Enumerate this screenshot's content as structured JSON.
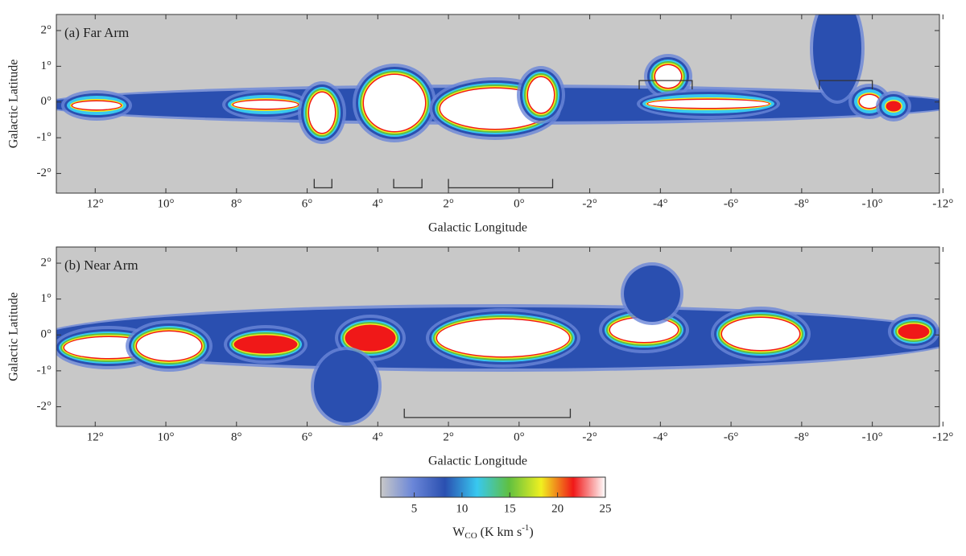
{
  "chart_data": [
    {
      "type": "map",
      "title": "(a) Far Arm",
      "xlabel": "Galactic Longitude",
      "ylabel": "Galactic Latitude",
      "xlim": [
        13.1,
        -11.9
      ],
      "ylim": [
        -2.55,
        2.45
      ],
      "xticks": [
        {
          "value": 12,
          "label": "12°"
        },
        {
          "value": 10,
          "label": "10°"
        },
        {
          "value": 8,
          "label": "8°"
        },
        {
          "value": 6,
          "label": "6°"
        },
        {
          "value": 4,
          "label": "4°"
        },
        {
          "value": 2,
          "label": "2°"
        },
        {
          "value": 0,
          "label": "0°"
        },
        {
          "value": -2,
          "label": "-2°"
        },
        {
          "value": -4,
          "label": "-4°"
        },
        {
          "value": -6,
          "label": "-6°"
        },
        {
          "value": -8,
          "label": "-8°"
        },
        {
          "value": -10,
          "label": "-10°"
        },
        {
          "value": -12,
          "label": "-12°"
        }
      ],
      "yticks": [
        {
          "value": 2,
          "label": "2°"
        },
        {
          "value": 1,
          "label": "1°"
        },
        {
          "value": 0,
          "label": "0°"
        },
        {
          "value": -1,
          "label": "-1°"
        },
        {
          "value": -2,
          "label": "-2°"
        }
      ],
      "brackets": [
        {
          "lon": [
            5.8,
            5.3
          ],
          "lat": -2.4
        },
        {
          "lon": [
            3.55,
            2.75
          ],
          "lat": -2.4
        },
        {
          "lon": [
            2.0,
            -0.95
          ],
          "lat": -2.4
        },
        {
          "lon": [
            -3.4,
            -4.9
          ],
          "lat": 0.6
        },
        {
          "lon": [
            -8.5,
            -10.0
          ],
          "lat": 0.6
        }
      ]
    },
    {
      "type": "map",
      "title": "(b) Near Arm",
      "xlabel": "Galactic Longitude",
      "ylabel": "Galactic Latitude",
      "xlim": [
        13.1,
        -11.9
      ],
      "ylim": [
        -2.55,
        2.45
      ],
      "xticks": [
        {
          "value": 12,
          "label": "12°"
        },
        {
          "value": 10,
          "label": "10°"
        },
        {
          "value": 8,
          "label": "8°"
        },
        {
          "value": 6,
          "label": "6°"
        },
        {
          "value": 4,
          "label": "4°"
        },
        {
          "value": 2,
          "label": "2°"
        },
        {
          "value": 0,
          "label": "0°"
        },
        {
          "value": -2,
          "label": "-2°"
        },
        {
          "value": -4,
          "label": "-4°"
        },
        {
          "value": -6,
          "label": "-6°"
        },
        {
          "value": -8,
          "label": "-8°"
        },
        {
          "value": -10,
          "label": "-10°"
        },
        {
          "value": -12,
          "label": "-12°"
        }
      ],
      "yticks": [
        {
          "value": 2,
          "label": "2°"
        },
        {
          "value": 1,
          "label": "1°"
        },
        {
          "value": 0,
          "label": "0°"
        },
        {
          "value": -1,
          "label": "-1°"
        },
        {
          "value": -2,
          "label": "-2°"
        }
      ],
      "brackets": [
        {
          "lon": [
            3.25,
            -1.45
          ],
          "lat": -2.3
        }
      ]
    },
    {
      "type": "colorbar",
      "label_parts": [
        "W",
        "CO",
        " (K km s",
        "-1",
        ")"
      ],
      "clim": [
        1.5,
        25
      ],
      "ticks": [
        5,
        10,
        15,
        20,
        25
      ],
      "colors": [
        "#c8c8c8",
        "#6a86d8",
        "#2a4fb0",
        "#38c8f0",
        "#60c040",
        "#f0f020",
        "#f01818",
        "#ffffff"
      ]
    }
  ]
}
